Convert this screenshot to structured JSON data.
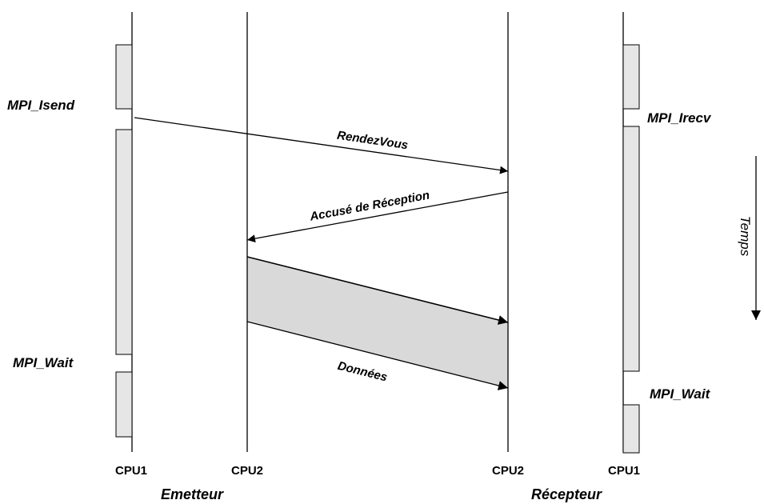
{
  "lifelines": {
    "sender_cpu1": "CPU1",
    "sender_cpu2": "CPU2",
    "receiver_cpu2": "CPU2",
    "receiver_cpu1": "CPU1"
  },
  "roles": {
    "sender": "Emetteur",
    "receiver": "Récepteur"
  },
  "calls": {
    "isend": "MPI_Isend",
    "sender_wait": "MPI_Wait",
    "irecv": "MPI_Irecv",
    "receiver_wait": "MPI_Wait"
  },
  "messages": {
    "rendezvous": "RendezVous",
    "ack": "Accusé de Réception",
    "data": "Données"
  },
  "time_label": "Temps",
  "colors": {
    "activation_fill": "#e6e6e6",
    "data_band_fill": "#d9d9d9",
    "line": "#000000"
  }
}
